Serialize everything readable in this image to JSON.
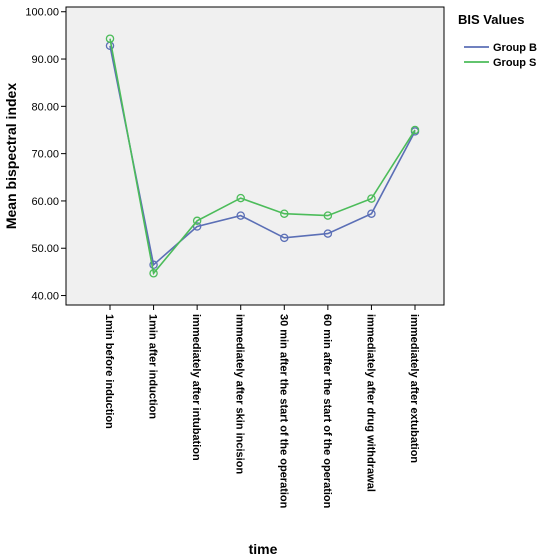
{
  "chart_data": {
    "type": "line",
    "xlabel": "time",
    "ylabel": "Mean bispectral index",
    "ylim": [
      38,
      101
    ],
    "yticks": [
      "40.00",
      "50.00",
      "60.00",
      "70.00",
      "80.00",
      "90.00",
      "100.00"
    ],
    "categories": [
      "1min before induction",
      "1min after induction",
      "immediately after intubation",
      "immediately after skin incision",
      "30 min after the start of the operation",
      "60 min after the start of the operation",
      "immediately after drug withdrawal",
      "immediately after extubation"
    ],
    "legend_title": "BIS Values",
    "legend_position": "top-right",
    "grid": false,
    "series": [
      {
        "name": "Group B",
        "color": "#5b6fb6",
        "values": [
          92.8,
          46.5,
          54.6,
          56.9,
          52.2,
          53.1,
          57.3,
          74.7
        ]
      },
      {
        "name": "Group S",
        "color": "#4cbc5a",
        "values": [
          94.3,
          44.7,
          55.8,
          60.6,
          57.3,
          56.9,
          60.5,
          75.0
        ]
      }
    ]
  }
}
